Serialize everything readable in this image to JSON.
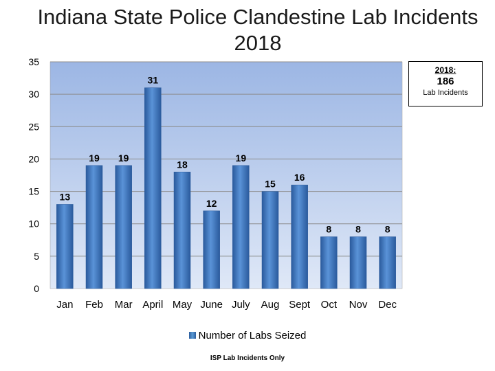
{
  "title_line1": "Indiana State Police Clandestine Lab Incidents",
  "title_line2": "2018",
  "total_box": {
    "label": "2018:",
    "value": "186",
    "sub": "Lab Incidents"
  },
  "legend_label": "Number of Labs Seized",
  "footnote": "ISP Lab Incidents Only",
  "colors": {
    "bar": "#3a75c4",
    "bar_dark": "#2a5a9c",
    "plot_top": "#9cb6e4",
    "plot_bottom": "#dfe8f7"
  },
  "chart_data": {
    "type": "bar",
    "title": "Indiana State Police Clandestine Lab Incidents 2018",
    "categories": [
      "Jan",
      "Feb",
      "Mar",
      "April",
      "May",
      "June",
      "July",
      "Aug",
      "Sept",
      "Oct",
      "Nov",
      "Dec"
    ],
    "series": [
      {
        "name": "Number of Labs Seized",
        "values": [
          13,
          19,
          19,
          31,
          18,
          12,
          19,
          15,
          16,
          8,
          8,
          8
        ]
      }
    ],
    "ylim": [
      0,
      35
    ],
    "yticks": [
      0,
      5,
      10,
      15,
      20,
      25,
      30,
      35
    ],
    "grid": true,
    "legend": "bottom"
  }
}
